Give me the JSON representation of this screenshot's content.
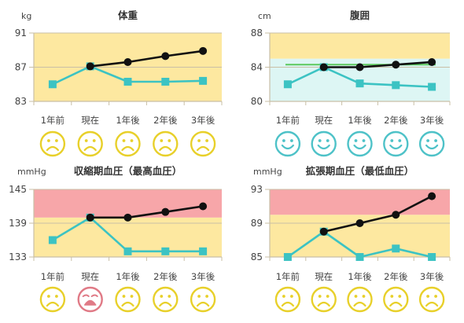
{
  "chart_data": [
    {
      "type": "line",
      "title": "体重",
      "unit": "kg",
      "categories": [
        "1年前",
        "現在",
        "1年後",
        "2年後",
        "3年後"
      ],
      "yticks": [
        83,
        87,
        91
      ],
      "ylim": [
        83,
        91
      ],
      "bands": [
        {
          "from": 83,
          "to": 91,
          "color": "#FDE8A0"
        }
      ],
      "series": [
        {
          "values": [
            85,
            87.1,
            87.6,
            88.3,
            88.9
          ],
          "color": "#111111",
          "marker": "circle",
          "start": 1
        },
        {
          "values": [
            85,
            87.1,
            85.3,
            85.3,
            85.4
          ],
          "color": "#3CC3C3",
          "marker": "square",
          "start": 0
        }
      ],
      "faces": [
        "sad",
        "sad",
        "sad",
        "sad",
        "sad"
      ]
    },
    {
      "type": "line",
      "title": "腹囲",
      "unit": "cm",
      "categories": [
        "1年前",
        "現在",
        "1年後",
        "2年後",
        "3年後"
      ],
      "yticks": [
        80,
        84,
        88
      ],
      "ylim": [
        80,
        88
      ],
      "bands": [
        {
          "from": 80,
          "to": 85,
          "color": "#DDF6F4"
        },
        {
          "from": 85,
          "to": 88,
          "color": "#FDE8A0"
        }
      ],
      "refline": {
        "value": 84.3,
        "color": "#5CC85C"
      },
      "series": [
        {
          "values": [
            82,
            84,
            84,
            84.3,
            84.6
          ],
          "color": "#111111",
          "marker": "circle",
          "start": 1
        },
        {
          "values": [
            82,
            84,
            82.1,
            81.9,
            81.7
          ],
          "color": "#3CC3C3",
          "marker": "square",
          "start": 0
        }
      ],
      "faces": [
        "happy",
        "happy",
        "happy",
        "happy",
        "happy"
      ]
    },
    {
      "type": "line",
      "title": "収縮期血圧（最高血圧）",
      "unit": "mmHg",
      "categories": [
        "1年前",
        "現在",
        "1年後",
        "2年後",
        "3年後"
      ],
      "yticks": [
        133,
        139,
        145
      ],
      "ylim": [
        133,
        145
      ],
      "bands": [
        {
          "from": 133,
          "to": 140,
          "color": "#FDE8A0"
        },
        {
          "from": 140,
          "to": 145,
          "color": "#F7A6A9"
        }
      ],
      "series": [
        {
          "values": [
            136,
            140,
            140,
            141,
            142
          ],
          "color": "#111111",
          "marker": "circle",
          "start": 1
        },
        {
          "values": [
            136,
            140,
            134,
            134,
            134
          ],
          "color": "#3CC3C3",
          "marker": "square",
          "start": 0
        }
      ],
      "faces": [
        "sad",
        "crying",
        "sad",
        "sad",
        "sad"
      ]
    },
    {
      "type": "line",
      "title": "拡張期血圧（最低血圧）",
      "unit": "mmHg",
      "categories": [
        "1年前",
        "現在",
        "1年後",
        "2年後",
        "3年後"
      ],
      "yticks": [
        85,
        89,
        93
      ],
      "ylim": [
        85,
        93
      ],
      "bands": [
        {
          "from": 85,
          "to": 90,
          "color": "#FDE8A0"
        },
        {
          "from": 90,
          "to": 93,
          "color": "#F7A6A9"
        }
      ],
      "series": [
        {
          "values": [
            85,
            88,
            89,
            90,
            92.2
          ],
          "color": "#111111",
          "marker": "circle",
          "start": 1
        },
        {
          "values": [
            85,
            88,
            85,
            86,
            85
          ],
          "color": "#3CC3C3",
          "marker": "square",
          "start": 0
        }
      ],
      "faces": [
        "sad",
        "sad",
        "sad",
        "sad",
        "sad"
      ]
    }
  ],
  "colors": {
    "sad_face": "#E8D02A",
    "happy_face": "#4EC2C8",
    "crying_face": "#E07A86",
    "axis": "#C9BFA6",
    "grid": "#C9BFA6",
    "text": "#444444"
  }
}
